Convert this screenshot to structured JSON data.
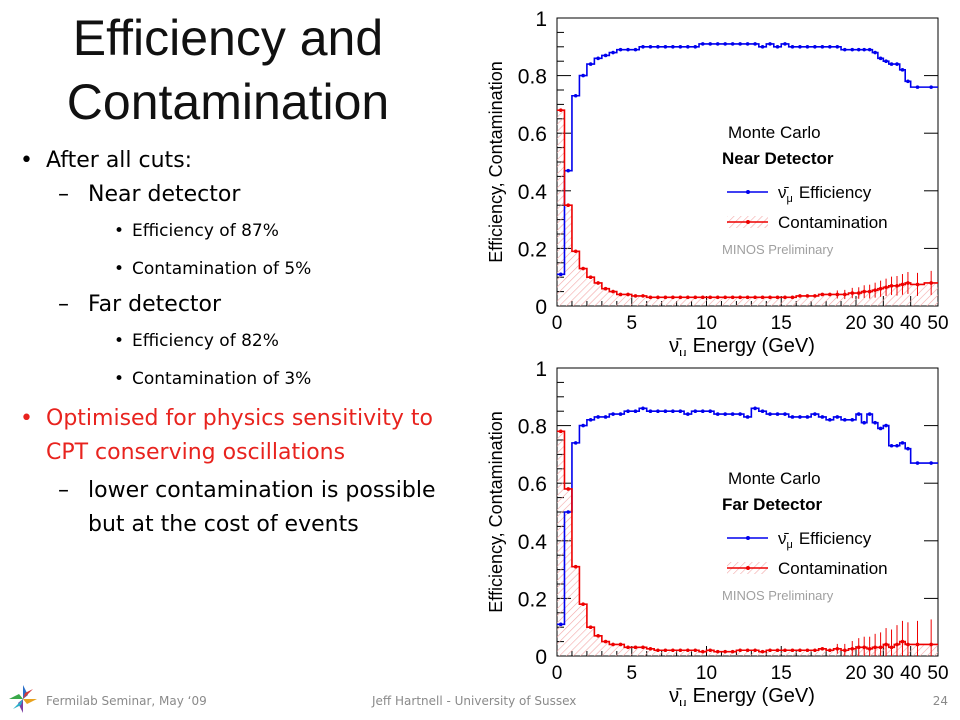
{
  "slide": {
    "title_line1": "Efficiency and",
    "title_line2": "Contamination",
    "bullets": [
      {
        "level": 1,
        "text": "After all cuts:"
      },
      {
        "level": 2,
        "text": "Near detector"
      },
      {
        "level": 3,
        "text": "Efficiency of 87%"
      },
      {
        "level": 3,
        "text": "Contamination of 5%"
      },
      {
        "level": 2,
        "text": "Far detector"
      },
      {
        "level": 3,
        "text": "Efficiency of 82%"
      },
      {
        "level": 3,
        "text": "Contamination of 3%"
      },
      {
        "level": 1,
        "red": true,
        "text": "Optimised for physics sensitivity to CPT conserving oscillations"
      },
      {
        "level": 2,
        "text": "lower contamination is possible but at the cost of events"
      }
    ],
    "footer_left": "Fermilab Seminar, May ‘09",
    "footer_center": "Jeff Hartnell - University of Sussex",
    "page_number": "24"
  },
  "chart_data": [
    {
      "type": "line",
      "ylabel": "Efficiency, Contamination",
      "xlabel": "Energy (GeV)",
      "xlabel_symbol": "ν̄",
      "xlabel_sub": "μ",
      "x_ticks": [
        "0",
        "5",
        "10",
        "15",
        "20",
        "30",
        "40",
        "50"
      ],
      "y_ticks": [
        "0",
        "0.2",
        "0.4",
        "0.6",
        "0.8",
        "1"
      ],
      "ylim": [
        0,
        1
      ],
      "legend": {
        "header": "Monte Carlo",
        "detector": "Near Detector",
        "efficiency_label": "Efficiency",
        "contamination_label": "Contamination",
        "preliminary": "MINOS Preliminary"
      },
      "colors": {
        "efficiency": "#0000ee",
        "contamination": "#ee0000"
      },
      "x_bin_edges": [
        0,
        0.5,
        1,
        1.5,
        2,
        2.5,
        3,
        3.5,
        4,
        4.5,
        5,
        5.5,
        6,
        6.5,
        7,
        7.5,
        8,
        8.5,
        9,
        9.5,
        10,
        10.5,
        11,
        11.5,
        12,
        12.5,
        13,
        13.5,
        14,
        14.5,
        15,
        15.5,
        16,
        16.5,
        17,
        17.5,
        18,
        18.5,
        19,
        19.5,
        20,
        22,
        24,
        26,
        28,
        30,
        32,
        34,
        36,
        38,
        40,
        45,
        50
      ],
      "series": [
        {
          "name": "Efficiency",
          "values": [
            0.11,
            0.47,
            0.73,
            0.8,
            0.84,
            0.86,
            0.87,
            0.88,
            0.89,
            0.89,
            0.89,
            0.9,
            0.9,
            0.9,
            0.9,
            0.9,
            0.9,
            0.9,
            0.9,
            0.91,
            0.91,
            0.91,
            0.91,
            0.91,
            0.91,
            0.91,
            0.91,
            0.9,
            0.91,
            0.9,
            0.91,
            0.9,
            0.9,
            0.9,
            0.9,
            0.9,
            0.9,
            0.9,
            0.89,
            0.89,
            0.89,
            0.89,
            0.89,
            0.88,
            0.86,
            0.85,
            0.84,
            0.84,
            0.82,
            0.78,
            0.76,
            0.76
          ]
        },
        {
          "name": "Contamination",
          "values": [
            0.68,
            0.35,
            0.19,
            0.13,
            0.1,
            0.08,
            0.06,
            0.05,
            0.04,
            0.04,
            0.035,
            0.035,
            0.03,
            0.03,
            0.03,
            0.03,
            0.03,
            0.03,
            0.03,
            0.03,
            0.03,
            0.03,
            0.03,
            0.03,
            0.03,
            0.03,
            0.03,
            0.03,
            0.03,
            0.03,
            0.03,
            0.03,
            0.035,
            0.035,
            0.035,
            0.04,
            0.04,
            0.04,
            0.04,
            0.045,
            0.045,
            0.05,
            0.05,
            0.055,
            0.06,
            0.065,
            0.07,
            0.07,
            0.075,
            0.08,
            0.075,
            0.08
          ]
        }
      ]
    },
    {
      "type": "line",
      "ylabel": "Efficiency, Contamination",
      "xlabel": "Energy (GeV)",
      "xlabel_symbol": "ν̄",
      "xlabel_sub": "μ",
      "x_ticks": [
        "0",
        "5",
        "10",
        "15",
        "20",
        "30",
        "40",
        "50"
      ],
      "y_ticks": [
        "0",
        "0.2",
        "0.4",
        "0.6",
        "0.8",
        "1"
      ],
      "ylim": [
        0,
        1
      ],
      "legend": {
        "header": "Monte Carlo",
        "detector": "Far Detector",
        "efficiency_label": "Efficiency",
        "contamination_label": "Contamination",
        "preliminary": "MINOS Preliminary"
      },
      "colors": {
        "efficiency": "#0000ee",
        "contamination": "#ee0000"
      },
      "x_bin_edges": [
        0,
        0.5,
        1,
        1.5,
        2,
        2.5,
        3,
        3.5,
        4,
        4.5,
        5,
        5.5,
        6,
        6.5,
        7,
        7.5,
        8,
        8.5,
        9,
        9.5,
        10,
        10.5,
        11,
        11.5,
        12,
        12.5,
        13,
        13.5,
        14,
        14.5,
        15,
        15.5,
        16,
        16.5,
        17,
        17.5,
        18,
        18.5,
        19,
        19.5,
        20,
        22,
        24,
        26,
        28,
        30,
        32,
        34,
        36,
        38,
        40,
        45,
        50
      ],
      "series": [
        {
          "name": "Efficiency",
          "values": [
            0.11,
            0.5,
            0.74,
            0.8,
            0.82,
            0.83,
            0.83,
            0.84,
            0.84,
            0.85,
            0.85,
            0.86,
            0.85,
            0.85,
            0.85,
            0.85,
            0.85,
            0.84,
            0.85,
            0.85,
            0.85,
            0.84,
            0.84,
            0.84,
            0.84,
            0.83,
            0.86,
            0.85,
            0.84,
            0.84,
            0.84,
            0.83,
            0.83,
            0.83,
            0.84,
            0.83,
            0.82,
            0.83,
            0.82,
            0.82,
            0.84,
            0.81,
            0.84,
            0.81,
            0.79,
            0.8,
            0.73,
            0.73,
            0.74,
            0.72,
            0.67,
            0.67
          ]
        },
        {
          "name": "Contamination",
          "values": [
            0.78,
            0.58,
            0.31,
            0.18,
            0.1,
            0.07,
            0.05,
            0.04,
            0.04,
            0.03,
            0.03,
            0.03,
            0.025,
            0.02,
            0.02,
            0.02,
            0.02,
            0.02,
            0.02,
            0.015,
            0.02,
            0.015,
            0.015,
            0.015,
            0.02,
            0.02,
            0.02,
            0.015,
            0.02,
            0.02,
            0.02,
            0.02,
            0.02,
            0.02,
            0.02,
            0.025,
            0.02,
            0.025,
            0.02,
            0.025,
            0.03,
            0.03,
            0.025,
            0.03,
            0.03,
            0.04,
            0.03,
            0.04,
            0.05,
            0.04,
            0.04,
            0.04
          ]
        }
      ]
    }
  ]
}
